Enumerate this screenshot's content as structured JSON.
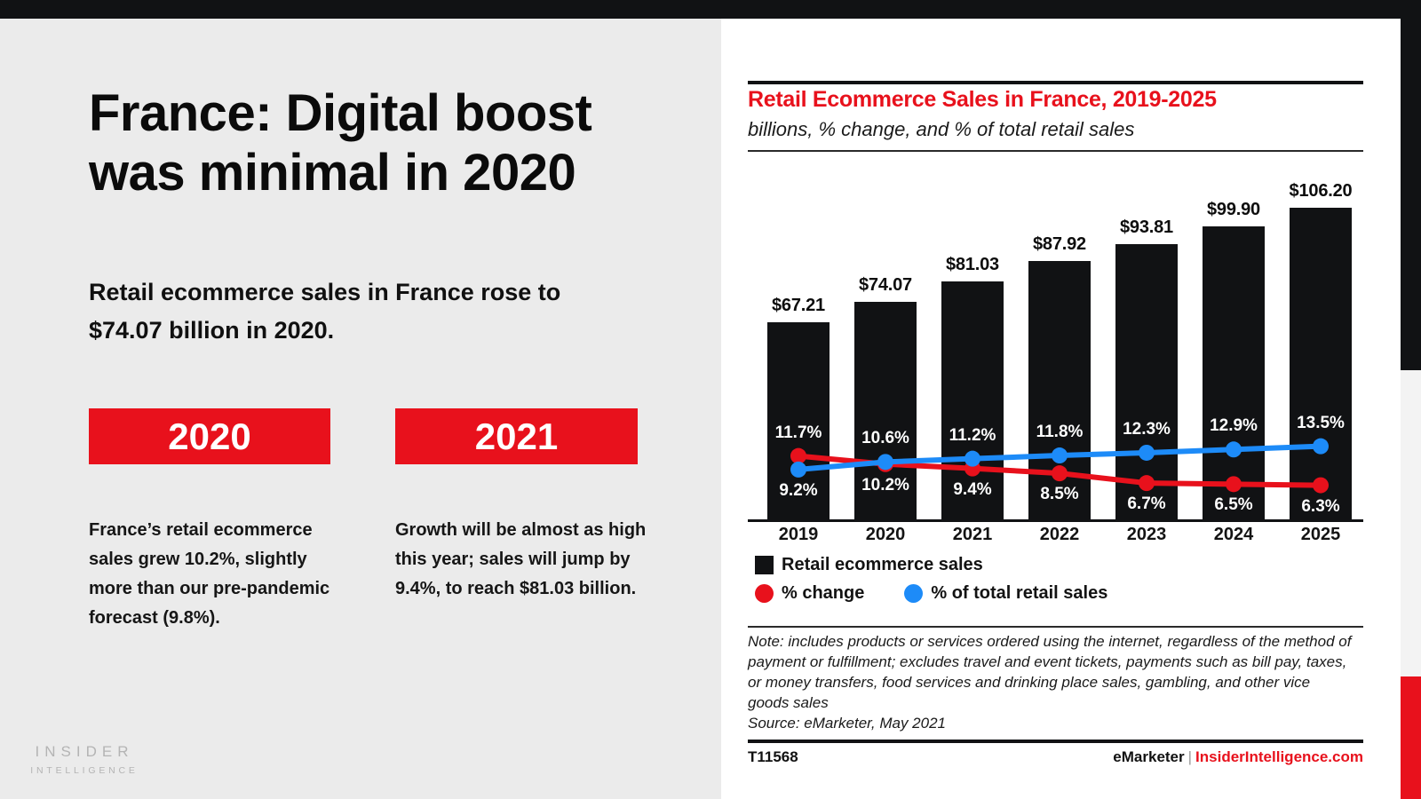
{
  "colors": {
    "accent_red": "#E8111C",
    "line_blue": "#1D8BF8",
    "bar_black": "#111214",
    "page_bg": "#EBEBEB",
    "card_bg": "#FFFFFF",
    "strip_gray": "#F3F3F3",
    "logo_gray": "#B4B4B4"
  },
  "left": {
    "title_line1": "France: Digital boost",
    "title_line2": "was minimal in 2020",
    "subtitle": "Retail ecommerce sales in France rose to $74.07 billion in 2020.",
    "callouts": [
      {
        "year": "2020",
        "text": "France’s retail ecommerce sales grew 10.2%, slightly more than our pre-pandemic forecast (9.8%)."
      },
      {
        "year": "2021",
        "text": "Growth will be almost as high this year; sales will jump by 9.4%, to reach $81.03 billion."
      }
    ],
    "logo_line1": "INSIDER",
    "logo_line2": "INTELLIGENCE"
  },
  "chart_data": {
    "type": "bar+line",
    "title": "Retail Ecommerce Sales in France, 2019-2025",
    "subtitle": "billions, % change, and % of total retail sales",
    "categories": [
      "2019",
      "2020",
      "2021",
      "2022",
      "2023",
      "2024",
      "2025"
    ],
    "bar_series": {
      "name": "Retail ecommerce sales",
      "unit": "billions of USD",
      "values": [
        67.21,
        74.07,
        81.03,
        87.92,
        93.81,
        99.9,
        106.2
      ],
      "labels": [
        "$67.21",
        "$74.07",
        "$81.03",
        "$87.92",
        "$93.81",
        "$99.90",
        "$106.20"
      ]
    },
    "line_series": [
      {
        "name": "% change",
        "color": "red",
        "values": [
          11.7,
          10.2,
          9.4,
          8.5,
          6.7,
          6.5,
          6.3
        ]
      },
      {
        "name": "% of total retail sales",
        "color": "blue",
        "values": [
          9.2,
          10.6,
          11.2,
          11.8,
          12.3,
          12.9,
          13.5
        ]
      }
    ],
    "legend_position": "bottom-left",
    "grid": false,
    "note": "Note: includes products or services ordered using the internet, regardless of the method of payment or fulfillment; excludes travel and event tickets, payments such as bill pay, taxes, or money transfers, food services and drinking place sales, gambling, and other vice goods sales",
    "source": "Source: eMarketer, May 2021",
    "footer_left": "T11568",
    "footer_brand": "eMarketer",
    "footer_sep": "|",
    "footer_site": "InsiderIntelligence.com"
  }
}
